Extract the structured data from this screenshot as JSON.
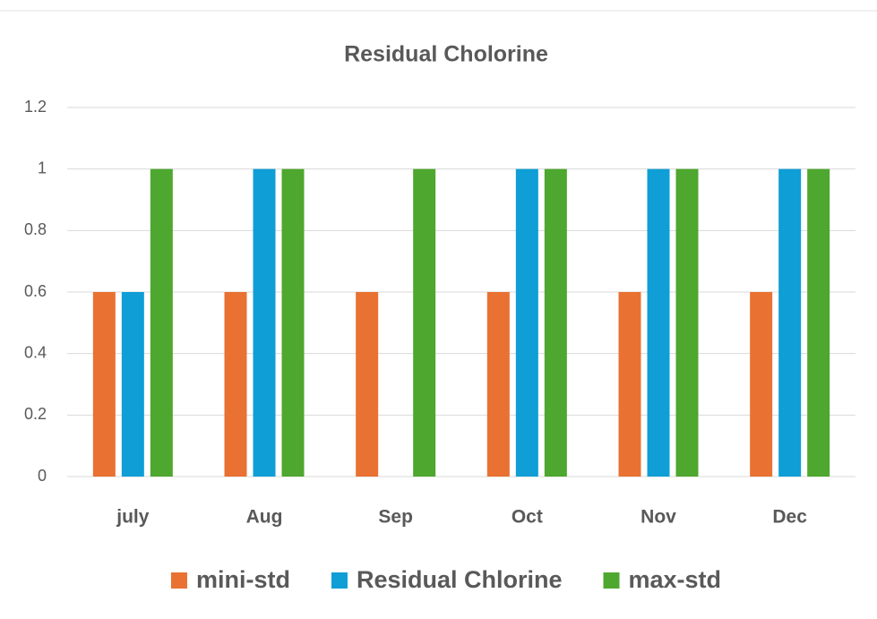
{
  "chart_data": {
    "type": "bar",
    "title": "Residual Cholorine",
    "categories": [
      "july",
      "Aug",
      "Sep",
      "Oct",
      "Nov",
      "Dec"
    ],
    "series": [
      {
        "name": "mini-std",
        "color": "#e97132",
        "values": [
          0.6,
          0.6,
          0.6,
          0.6,
          0.6,
          0.6
        ]
      },
      {
        "name": "Residual Chlorine",
        "color": "#0f9ed5",
        "values": [
          0.6,
          1,
          null,
          1,
          1,
          1
        ]
      },
      {
        "name": "max-std",
        "color": "#4ea72e",
        "values": [
          1,
          1,
          1,
          1,
          1,
          1
        ]
      }
    ],
    "ylim": [
      0,
      1.2
    ],
    "yticks": [
      0,
      0.2,
      0.4,
      0.6,
      0.8,
      1,
      1.2
    ],
    "grid": true,
    "legend": "bottom"
  }
}
